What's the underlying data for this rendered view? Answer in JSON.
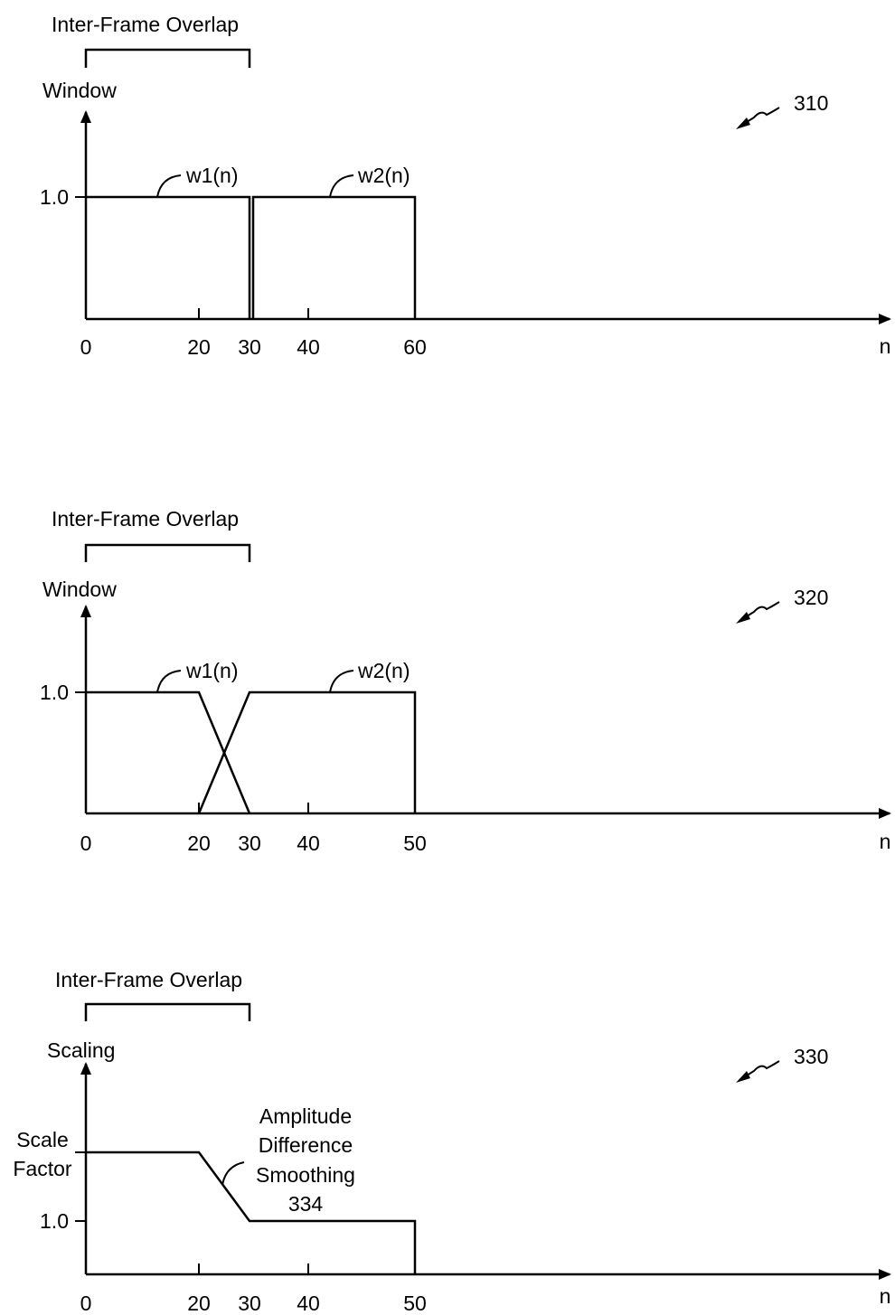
{
  "panels": [
    {
      "id": "310",
      "ref_label": "310",
      "overlap_label": "Inter-Frame Overlap",
      "y_axis_label": "Window",
      "x_axis_label": "n",
      "y_ticks": [
        "1.0"
      ],
      "x_ticks": [
        "0",
        "20",
        "30",
        "40",
        "60"
      ],
      "curves": [
        {
          "label": "w1(n)",
          "points": [
            [
              0,
              1.0
            ],
            [
              30,
              1.0
            ],
            [
              30,
              0
            ]
          ]
        },
        {
          "label": "w2(n)",
          "points": [
            [
              30,
              0
            ],
            [
              30,
              1.0
            ],
            [
              60,
              1.0
            ],
            [
              60,
              0
            ]
          ]
        }
      ]
    },
    {
      "id": "320",
      "ref_label": "320",
      "overlap_label": "Inter-Frame Overlap",
      "y_axis_label": "Window",
      "x_axis_label": "n",
      "y_ticks": [
        "1.0"
      ],
      "x_ticks": [
        "0",
        "20",
        "30",
        "40",
        "50"
      ],
      "curves": [
        {
          "label": "w1(n)",
          "points": [
            [
              0,
              1.0
            ],
            [
              20,
              1.0
            ],
            [
              30,
              0
            ]
          ]
        },
        {
          "label": "w2(n)",
          "points": [
            [
              20,
              0
            ],
            [
              30,
              1.0
            ],
            [
              50,
              1.0
            ],
            [
              50,
              0
            ]
          ]
        }
      ]
    },
    {
      "id": "330",
      "ref_label": "330",
      "overlap_label": "Inter-Frame Overlap",
      "y_axis_label": "Scaling",
      "x_axis_label": "n",
      "y_ticks": [
        "Scale Factor",
        "1.0"
      ],
      "scale_factor_line1": "Scale",
      "scale_factor_line2": "Factor",
      "x_ticks": [
        "0",
        "20",
        "30",
        "40",
        "50"
      ],
      "annotation_lines": [
        "Amplitude",
        "Difference",
        "Smoothing",
        "334"
      ],
      "curves": [
        {
          "label": "",
          "points": [
            [
              0,
              "Scale Factor"
            ],
            [
              20,
              "Scale Factor"
            ],
            [
              30,
              1.0
            ],
            [
              50,
              1.0
            ],
            [
              50,
              0
            ]
          ]
        }
      ]
    }
  ]
}
